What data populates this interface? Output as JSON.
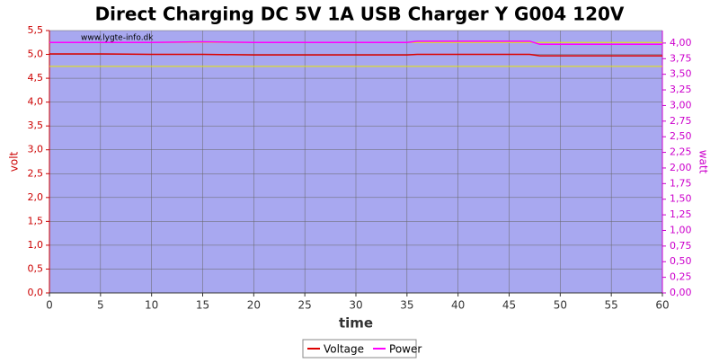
{
  "chart_data": {
    "type": "line",
    "title": "Direct Charging DC 5V 1A USB Charger Y G004 120V",
    "watermark": "www.lygte-info.dk",
    "x_label": "time",
    "y_label": "volt",
    "y2_label": "watt",
    "x": [
      0,
      5,
      10,
      15,
      20,
      25,
      30,
      35,
      36,
      40,
      45,
      47,
      48,
      50,
      55,
      60
    ],
    "series": [
      {
        "name": "Voltage",
        "color": "#dd0000",
        "values": [
          5.01,
          5.01,
          5.0,
          5.0,
          4.99,
          4.99,
          4.99,
          4.99,
          5.0,
          5.0,
          5.0,
          5.0,
          4.97,
          4.97,
          4.97,
          4.97
        ]
      },
      {
        "name": "Power",
        "color": "#ff00ff",
        "axis": "y2",
        "values": [
          4.01,
          4.01,
          4.01,
          4.02,
          4.01,
          4.01,
          4.01,
          4.01,
          4.03,
          4.03,
          4.03,
          4.03,
          3.98,
          3.98,
          3.98,
          3.98
        ]
      }
    ],
    "reference_lines": [
      {
        "value": 4.75,
        "color": "#e8e800"
      },
      {
        "value": 5.25,
        "color": "#e8e800"
      }
    ],
    "xlim": [
      0,
      60
    ],
    "xticks": [
      0,
      5,
      10,
      15,
      20,
      25,
      30,
      35,
      40,
      45,
      50,
      55,
      60
    ],
    "ylim": [
      0,
      5.5
    ],
    "yticks": [
      {
        "value": 0,
        "label": "0,0"
      },
      {
        "value": 0.5,
        "label": "0,5"
      },
      {
        "value": 1,
        "label": "1,0"
      },
      {
        "value": 1.5,
        "label": "1,5"
      },
      {
        "value": 2,
        "label": "2,0"
      },
      {
        "value": 2.5,
        "label": "2,5"
      },
      {
        "value": 3,
        "label": "3,0"
      },
      {
        "value": 3.5,
        "label": "3,5"
      },
      {
        "value": 4,
        "label": "4,0"
      },
      {
        "value": 4.5,
        "label": "4,5"
      },
      {
        "value": 5,
        "label": "5,0"
      },
      {
        "value": 5.5,
        "label": "5,5"
      }
    ],
    "y2lim": [
      0,
      4.2
    ],
    "y2ticks": [
      {
        "value": 0,
        "label": "0,00"
      },
      {
        "value": 0.25,
        "label": "0,25"
      },
      {
        "value": 0.5,
        "label": "0,50"
      },
      {
        "value": 0.75,
        "label": "0,75"
      },
      {
        "value": 1,
        "label": "1,00"
      },
      {
        "value": 1.25,
        "label": "1,25"
      },
      {
        "value": 1.5,
        "label": "1,50"
      },
      {
        "value": 1.75,
        "label": "1,75"
      },
      {
        "value": 2,
        "label": "2,00"
      },
      {
        "value": 2.25,
        "label": "2,25"
      },
      {
        "value": 2.5,
        "label": "2,50"
      },
      {
        "value": 2.75,
        "label": "2,75"
      },
      {
        "value": 3,
        "label": "3,00"
      },
      {
        "value": 3.25,
        "label": "3,25"
      },
      {
        "value": 3.5,
        "label": "3,50"
      },
      {
        "value": 3.75,
        "label": "3,75"
      },
      {
        "value": 4,
        "label": "4,00"
      }
    ],
    "grid": true,
    "legend": "bottom"
  }
}
